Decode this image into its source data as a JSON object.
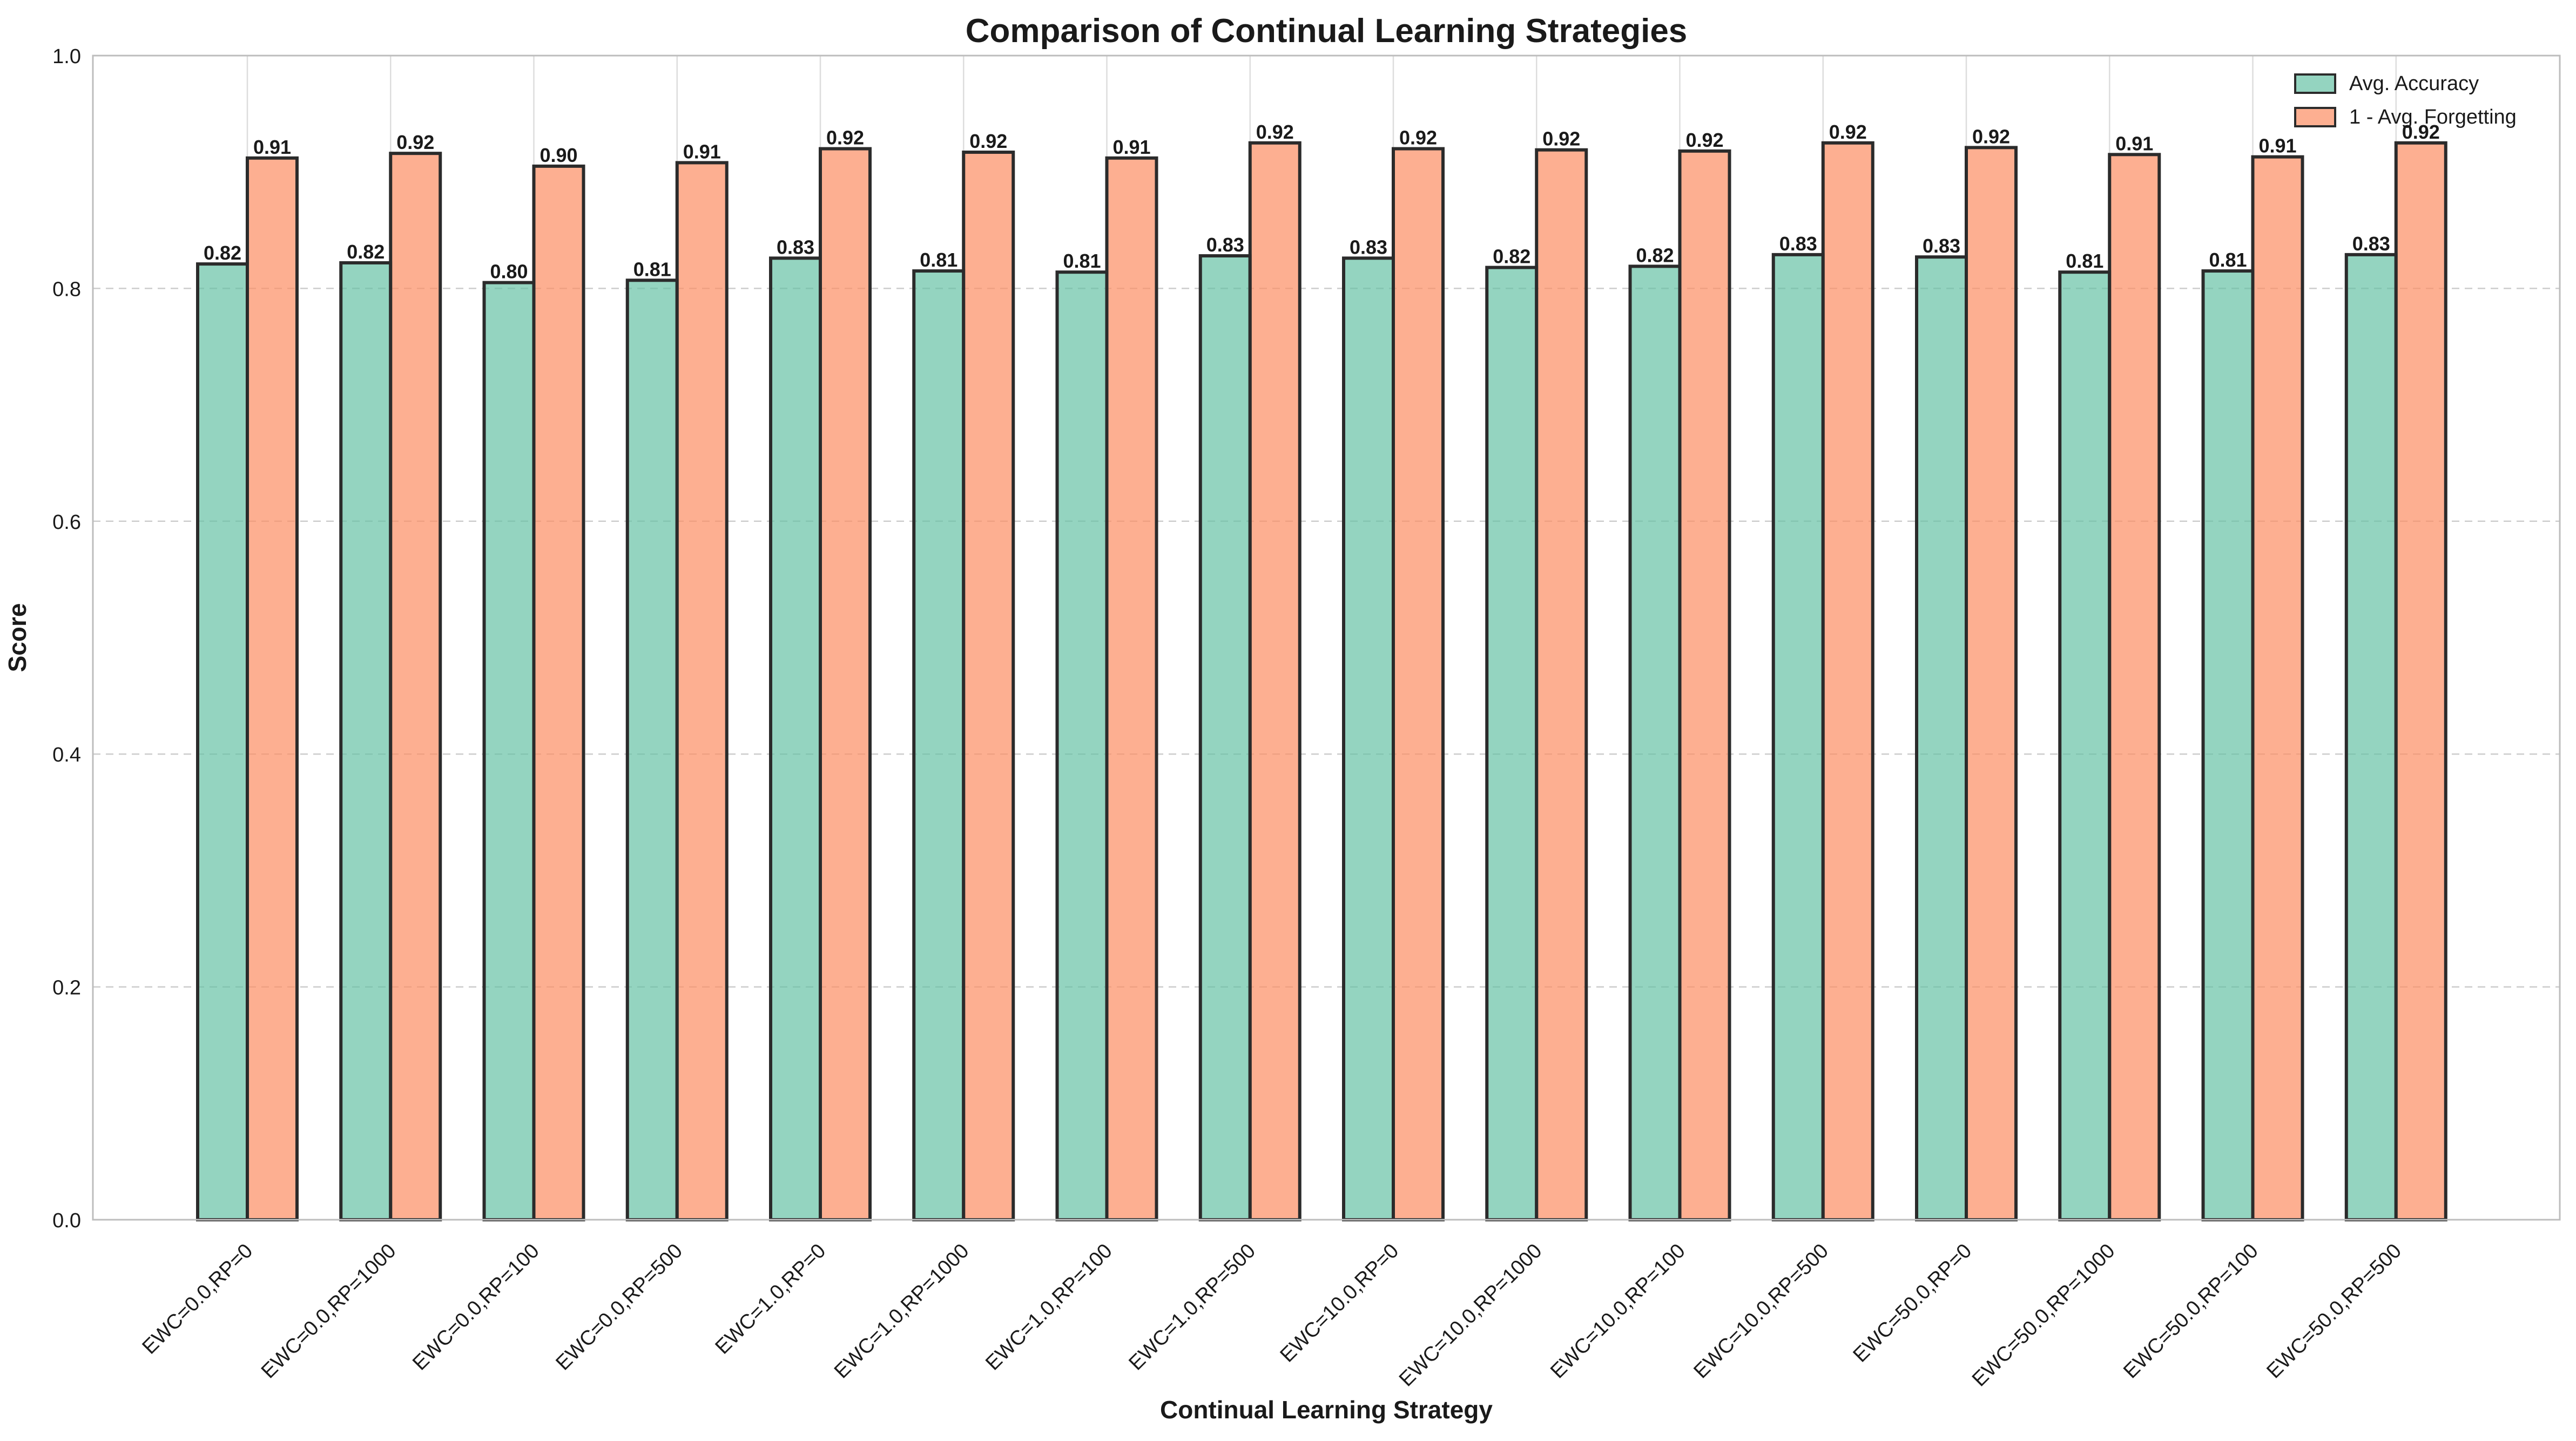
{
  "chart_data": {
    "type": "bar",
    "title": "Comparison of Continual Learning Strategies",
    "xlabel": "Continual Learning Strategy",
    "ylabel": "Score",
    "ylim": [
      0,
      1.0
    ],
    "yticks": [
      "0.0",
      "0.2",
      "0.4",
      "0.6",
      "0.8",
      "1.0"
    ],
    "grid": true,
    "legend_position": "top-right",
    "categories": [
      "EWC=0.0,RP=0",
      "EWC=0.0,RP=1000",
      "EWC=0.0,RP=100",
      "EWC=0.0,RP=500",
      "EWC=1.0,RP=0",
      "EWC=1.0,RP=1000",
      "EWC=1.0,RP=100",
      "EWC=1.0,RP=500",
      "EWC=10.0,RP=0",
      "EWC=10.0,RP=1000",
      "EWC=10.0,RP=100",
      "EWC=10.0,RP=500",
      "EWC=50.0,RP=0",
      "EWC=50.0,RP=1000",
      "EWC=50.0,RP=100",
      "EWC=50.0,RP=500"
    ],
    "series": [
      {
        "name": "Avg. Accuracy",
        "color": "#66c2a5",
        "values": [
          0.821,
          0.822,
          0.805,
          0.807,
          0.826,
          0.815,
          0.814,
          0.828,
          0.826,
          0.818,
          0.819,
          0.829,
          0.827,
          0.814,
          0.815,
          0.829
        ],
        "labels": [
          "0.82",
          "0.82",
          "0.80",
          "0.81",
          "0.83",
          "0.81",
          "0.81",
          "0.83",
          "0.83",
          "0.82",
          "0.82",
          "0.83",
          "0.83",
          "0.81",
          "0.81",
          "0.83"
        ]
      },
      {
        "name": "1 - Avg. Forgetting",
        "color": "#fc8d62",
        "values": [
          0.912,
          0.916,
          0.905,
          0.908,
          0.92,
          0.917,
          0.912,
          0.925,
          0.92,
          0.919,
          0.918,
          0.925,
          0.921,
          0.915,
          0.913,
          0.925
        ],
        "labels": [
          "0.91",
          "0.92",
          "0.90",
          "0.91",
          "0.92",
          "0.92",
          "0.91",
          "0.92",
          "0.92",
          "0.92",
          "0.92",
          "0.92",
          "0.92",
          "0.91",
          "0.91",
          "0.92"
        ]
      }
    ]
  }
}
